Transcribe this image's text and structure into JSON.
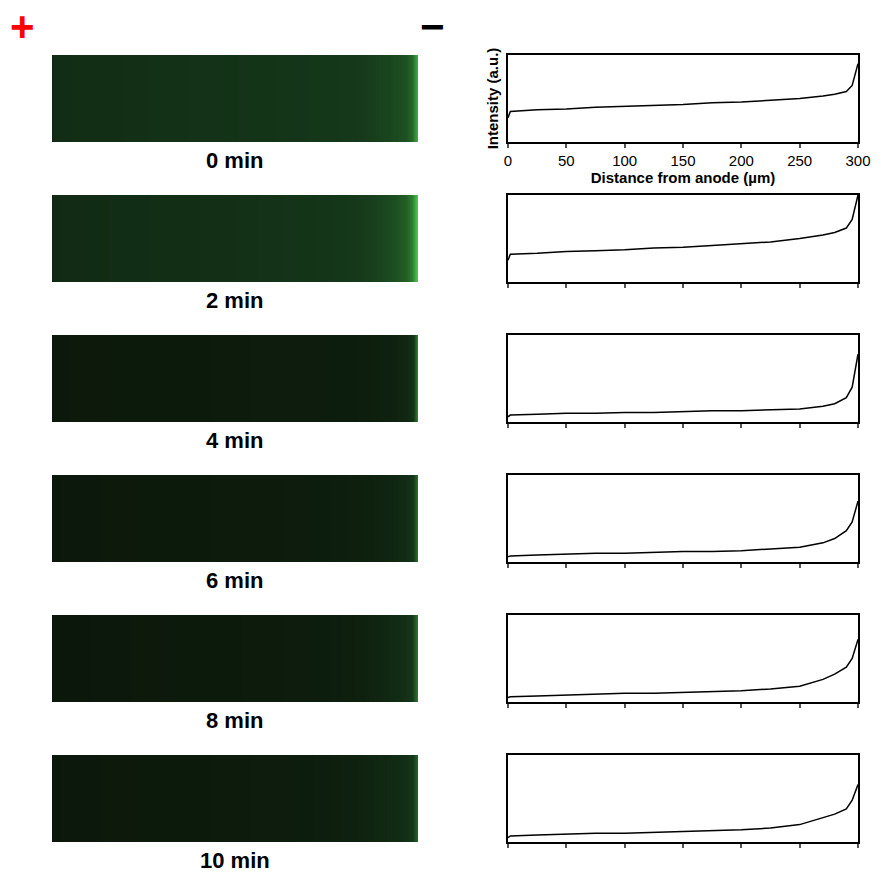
{
  "chart_data": [
    {
      "type": "line",
      "title": "0 min",
      "xlabel": "Distance from anode (µm)",
      "ylabel": "Intensity (a.u.)",
      "annotations": [
        {
          "text": "+",
          "color": "#ff0000"
        },
        {
          "text": "−",
          "color": "#000000"
        }
      ],
      "x": [
        0,
        2,
        25,
        50,
        75,
        100,
        125,
        150,
        175,
        200,
        225,
        250,
        270,
        280,
        290,
        295,
        300
      ],
      "values": [
        0.28,
        0.35,
        0.37,
        0.38,
        0.4,
        0.41,
        0.42,
        0.43,
        0.45,
        0.46,
        0.48,
        0.5,
        0.53,
        0.55,
        0.58,
        0.65,
        0.9
      ],
      "xlim": [
        0,
        300
      ],
      "ylim": [
        0,
        1
      ],
      "xticks": [
        0,
        50,
        100,
        150,
        200,
        250,
        300
      ],
      "yticks": [],
      "tick_labels": "x",
      "color": "#000000"
    },
    {
      "type": "line",
      "title": "2 min",
      "x": [
        0,
        2,
        25,
        50,
        75,
        100,
        125,
        150,
        175,
        200,
        225,
        250,
        270,
        280,
        290,
        295,
        300
      ],
      "values": [
        0.25,
        0.32,
        0.33,
        0.35,
        0.36,
        0.37,
        0.39,
        0.4,
        0.42,
        0.44,
        0.46,
        0.5,
        0.54,
        0.57,
        0.62,
        0.72,
        1.0
      ],
      "xlim": [
        0,
        300
      ],
      "ylim": [
        0,
        1
      ],
      "xticks": [
        0,
        50,
        100,
        150,
        200,
        250,
        300
      ],
      "yticks": [],
      "tick_labels": false,
      "color": "#000000"
    },
    {
      "type": "line",
      "title": "4 min",
      "x": [
        0,
        2,
        25,
        50,
        75,
        100,
        125,
        150,
        175,
        200,
        225,
        250,
        270,
        280,
        290,
        295,
        300
      ],
      "values": [
        0.06,
        0.08,
        0.09,
        0.1,
        0.1,
        0.11,
        0.11,
        0.12,
        0.13,
        0.13,
        0.14,
        0.15,
        0.18,
        0.21,
        0.28,
        0.4,
        0.78
      ],
      "xlim": [
        0,
        300
      ],
      "ylim": [
        0,
        1
      ],
      "xticks": [
        0,
        50,
        100,
        150,
        200,
        250,
        300
      ],
      "yticks": [],
      "tick_labels": false,
      "color": "#000000"
    },
    {
      "type": "line",
      "title": "6 min",
      "x": [
        0,
        2,
        25,
        50,
        75,
        100,
        125,
        150,
        175,
        200,
        225,
        250,
        270,
        280,
        290,
        295,
        300
      ],
      "values": [
        0.06,
        0.07,
        0.08,
        0.09,
        0.1,
        0.1,
        0.11,
        0.12,
        0.12,
        0.13,
        0.15,
        0.17,
        0.22,
        0.27,
        0.36,
        0.46,
        0.7
      ],
      "xlim": [
        0,
        300
      ],
      "ylim": [
        0,
        1
      ],
      "xticks": [
        0,
        50,
        100,
        150,
        200,
        250,
        300
      ],
      "yticks": [],
      "tick_labels": false,
      "color": "#000000"
    },
    {
      "type": "line",
      "title": "8 min",
      "x": [
        0,
        2,
        25,
        50,
        75,
        100,
        125,
        150,
        175,
        200,
        225,
        250,
        270,
        280,
        290,
        295,
        300
      ],
      "values": [
        0.05,
        0.06,
        0.07,
        0.08,
        0.09,
        0.1,
        0.1,
        0.11,
        0.12,
        0.13,
        0.15,
        0.18,
        0.26,
        0.32,
        0.4,
        0.5,
        0.72
      ],
      "xlim": [
        0,
        300
      ],
      "ylim": [
        0,
        1
      ],
      "xticks": [
        0,
        50,
        100,
        150,
        200,
        250,
        300
      ],
      "yticks": [],
      "tick_labels": false,
      "color": "#000000"
    },
    {
      "type": "line",
      "title": "10 min",
      "x": [
        0,
        2,
        25,
        50,
        75,
        100,
        125,
        150,
        175,
        200,
        225,
        250,
        270,
        280,
        290,
        295,
        300
      ],
      "values": [
        0.05,
        0.07,
        0.08,
        0.09,
        0.1,
        0.1,
        0.11,
        0.12,
        0.13,
        0.14,
        0.16,
        0.2,
        0.28,
        0.32,
        0.38,
        0.48,
        0.66
      ],
      "xlim": [
        0,
        300
      ],
      "ylim": [
        0,
        1
      ],
      "xticks": [
        0,
        50,
        100,
        150,
        200,
        250,
        300
      ],
      "yticks": [],
      "tick_labels": false,
      "color": "#000000"
    }
  ]
}
